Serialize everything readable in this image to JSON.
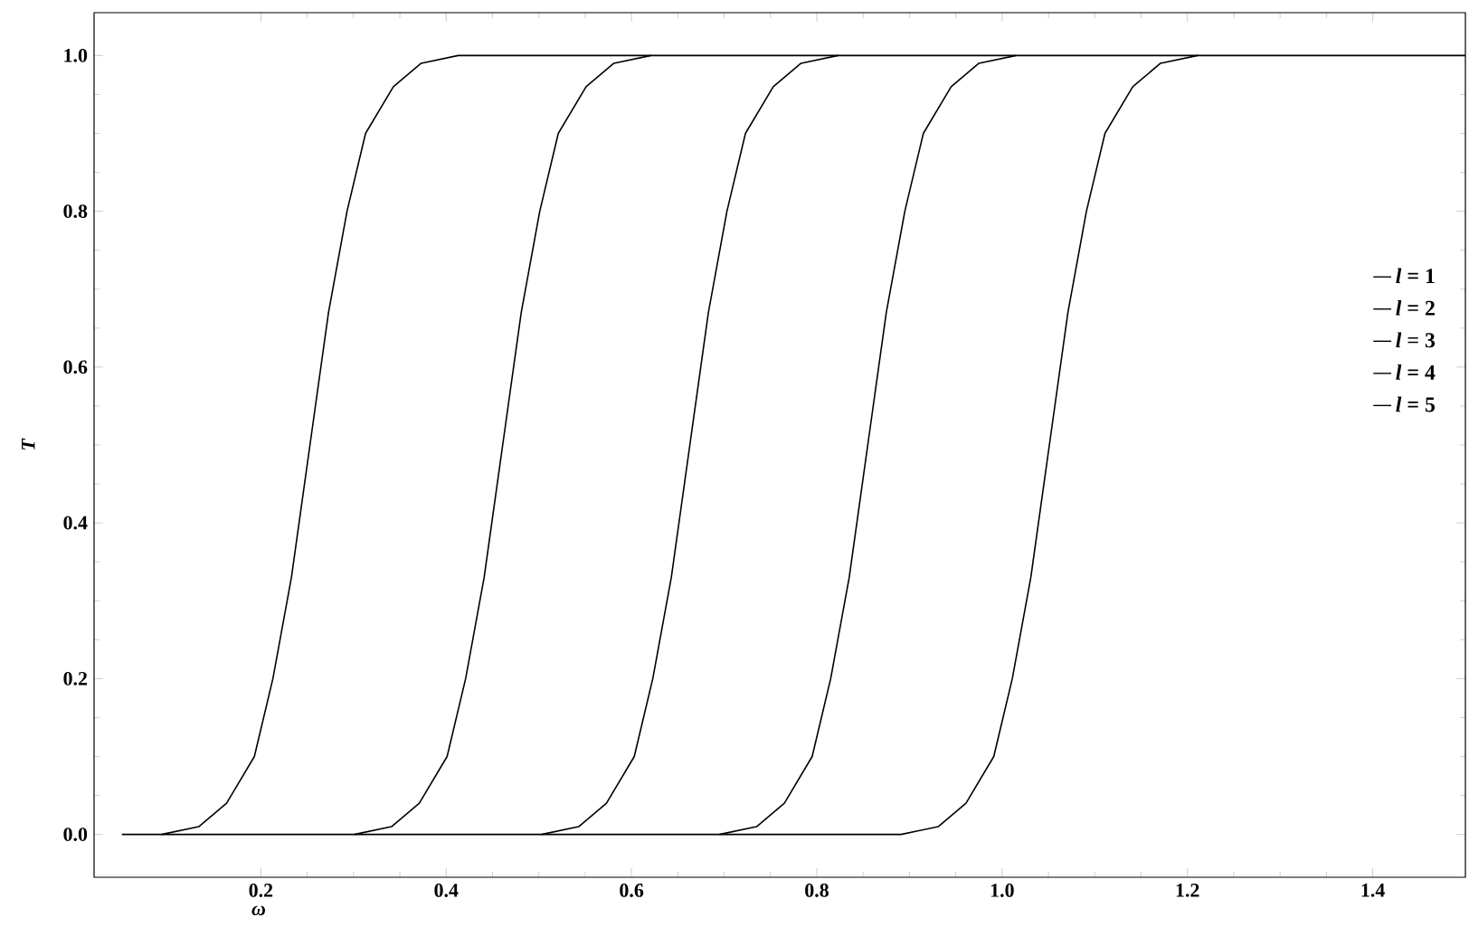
{
  "chart_data": {
    "type": "line",
    "xlabel": "ω",
    "ylabel": "T",
    "xlim": [
      0.02,
      1.5
    ],
    "ylim": [
      -0.055,
      1.055
    ],
    "xticks": [
      0.2,
      0.4,
      0.6,
      0.8,
      {
        "value": 1,
        "label": "1.0"
      },
      1.2,
      1.4
    ],
    "yticks": [
      {
        "value": 0,
        "label": "0.0"
      },
      0.2,
      0.4,
      0.6,
      0.8,
      {
        "value": 1,
        "label": "1.0"
      }
    ],
    "grid": false,
    "legend": "right",
    "marker": "none",
    "line_style": "solid",
    "series": [
      {
        "name": "*l* = 1",
        "color": "#000000",
        "x": [
          0.05,
          0.093,
          0.133,
          0.163,
          0.193,
          0.213,
          0.233,
          0.253,
          0.273,
          0.293,
          0.313,
          0.343,
          0.373,
          0.413,
          0.621
        ],
        "values": [
          0,
          0,
          0.01,
          0.04,
          0.1,
          0.2,
          0.33,
          0.5,
          0.67,
          0.8,
          0.9,
          0.96,
          0.99,
          1,
          1
        ]
      },
      {
        "name": "*l* = 2",
        "color": "#000000",
        "x": [
          0.093,
          0.301,
          0.341,
          0.371,
          0.401,
          0.421,
          0.441,
          0.461,
          0.481,
          0.501,
          0.521,
          0.551,
          0.581,
          0.621,
          0.823
        ],
        "values": [
          0,
          0,
          0.01,
          0.04,
          0.1,
          0.2,
          0.33,
          0.5,
          0.67,
          0.8,
          0.9,
          0.96,
          0.99,
          1,
          1
        ]
      },
      {
        "name": "*l* = 3",
        "color": "#000000",
        "x": [
          0.301,
          0.503,
          0.543,
          0.573,
          0.603,
          0.623,
          0.643,
          0.663,
          0.683,
          0.703,
          0.723,
          0.753,
          0.783,
          0.823,
          1.015
        ],
        "values": [
          0,
          0,
          0.01,
          0.04,
          0.1,
          0.2,
          0.33,
          0.5,
          0.67,
          0.8,
          0.9,
          0.96,
          0.99,
          1,
          1
        ]
      },
      {
        "name": "*l* = 4",
        "color": "#000000",
        "x": [
          0.503,
          0.695,
          0.735,
          0.765,
          0.795,
          0.815,
          0.835,
          0.855,
          0.875,
          0.895,
          0.915,
          0.945,
          0.975,
          1.015,
          1.211
        ],
        "values": [
          0,
          0,
          0.01,
          0.04,
          0.1,
          0.2,
          0.33,
          0.5,
          0.67,
          0.8,
          0.9,
          0.96,
          0.99,
          1,
          1
        ]
      },
      {
        "name": "*l* = 5",
        "color": "#000000",
        "x": [
          0.695,
          0.891,
          0.931,
          0.961,
          0.991,
          1.011,
          1.031,
          1.051,
          1.071,
          1.091,
          1.111,
          1.141,
          1.171,
          1.211,
          1.5
        ],
        "values": [
          0,
          0,
          0.01,
          0.04,
          0.1,
          0.2,
          0.33,
          0.5,
          0.67,
          0.8,
          0.9,
          0.96,
          0.99,
          1,
          1
        ]
      }
    ]
  }
}
